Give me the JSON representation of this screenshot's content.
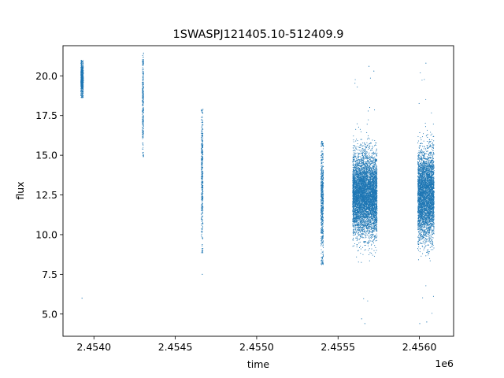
{
  "chart_data": {
    "type": "scatter",
    "title": "1SWASPJ121405.10-512409.9",
    "xlabel": "time",
    "ylabel": "flux",
    "x_offset_label": "1e6",
    "xlim": [
      2.45381,
      2.45621
    ],
    "ylim": [
      3.6,
      21.9
    ],
    "xticks": [
      2.454,
      2.4545,
      2.455,
      2.4555,
      2.456
    ],
    "xtick_labels": [
      "2.4540",
      "2.4545",
      "2.4550",
      "2.4555",
      "2.4560"
    ],
    "yticks": [
      5.0,
      7.5,
      10.0,
      12.5,
      15.0,
      17.5,
      20.0
    ],
    "ytick_labels": [
      "5.0",
      "7.5",
      "10.0",
      "12.5",
      "15.0",
      "17.5",
      "20.0"
    ],
    "grid": false,
    "legend": "none",
    "marker_color": "#1f77b4",
    "groups": [
      {
        "x_range": [
          2.45392,
          2.453935
        ],
        "center": 19.8,
        "spread": 0.5,
        "ymin": 18.6,
        "ymax": 21.0
      },
      {
        "x_range": [
          2.454298,
          2.454305
        ],
        "center": 18.3,
        "spread": 1.6,
        "ymin": 14.9,
        "ymax": 21.0
      },
      {
        "x_range": [
          2.45466,
          2.45467
        ],
        "center": 13.6,
        "spread": 2.0,
        "ymin": 8.8,
        "ymax": 17.9
      },
      {
        "x_range": [
          2.455395,
          2.45541
        ],
        "center": 12.2,
        "spread": 1.7,
        "ymin": 8.1,
        "ymax": 15.9
      },
      {
        "x_range": [
          2.45559,
          2.45574
        ],
        "center": 12.5,
        "spread": 1.25,
        "ymin": 5.7,
        "ymax": 20.6
      },
      {
        "x_range": [
          2.45599,
          2.45609
        ],
        "center": 12.5,
        "spread": 1.35,
        "ymin": 4.4,
        "ymax": 20.8
      }
    ],
    "outliers": [
      {
        "x": 2.453927,
        "y": 6.0
      },
      {
        "x": 2.454666,
        "y": 7.5
      },
      {
        "x": 2.455645,
        "y": 4.7
      },
      {
        "x": 2.455665,
        "y": 4.4
      },
      {
        "x": 2.456002,
        "y": 4.4
      },
      {
        "x": 2.456045,
        "y": 4.5
      },
      {
        "x": 2.45604,
        "y": 20.8
      },
      {
        "x": 2.45569,
        "y": 20.6
      },
      {
        "x": 2.45572,
        "y": 20.3
      }
    ]
  }
}
